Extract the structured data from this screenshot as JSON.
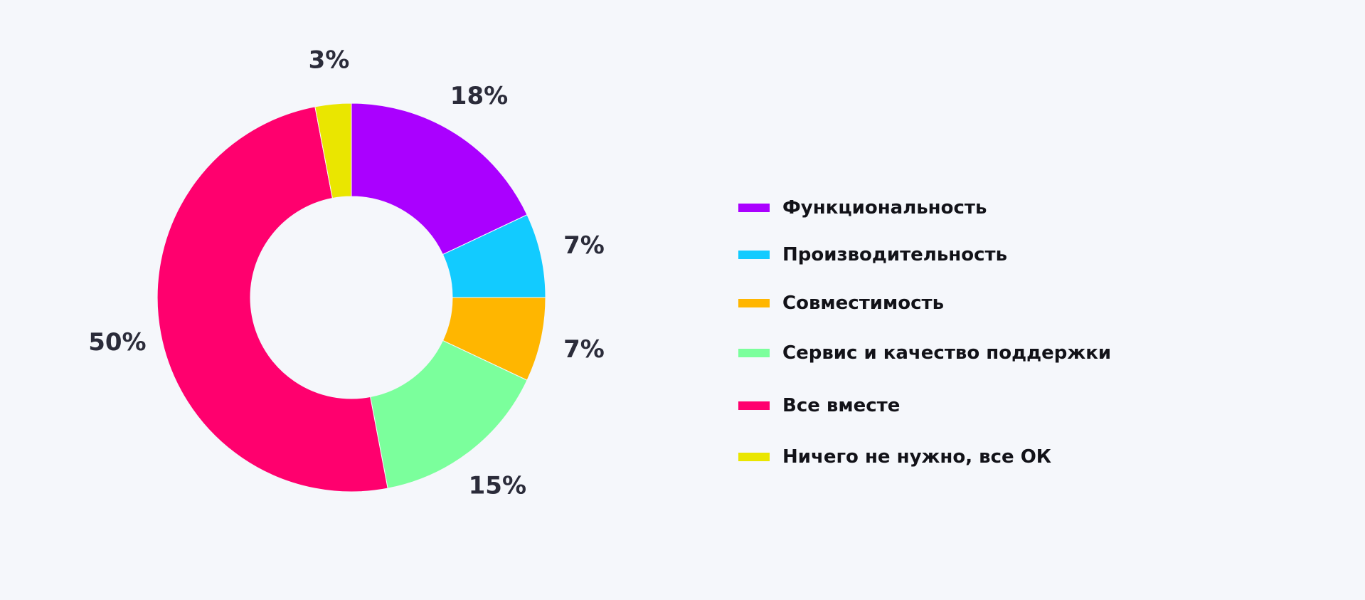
{
  "chart_data": {
    "type": "pie",
    "donut": true,
    "categories": [
      "Функциональность",
      "Производительность",
      "Совместимость",
      "Сервис и качество поддержки",
      "Все вместе",
      "Ничего не нужно, все ОК"
    ],
    "values": [
      18,
      7,
      7,
      15,
      50,
      3
    ],
    "labels": [
      "18%",
      "7%",
      "7%",
      "15%",
      "50%",
      "3%"
    ],
    "colors": [
      "#aa00ff",
      "#12cbff",
      "#ffb600",
      "#7bff9c",
      "#ff006e",
      "#eae600"
    ],
    "legend_position": "right"
  }
}
